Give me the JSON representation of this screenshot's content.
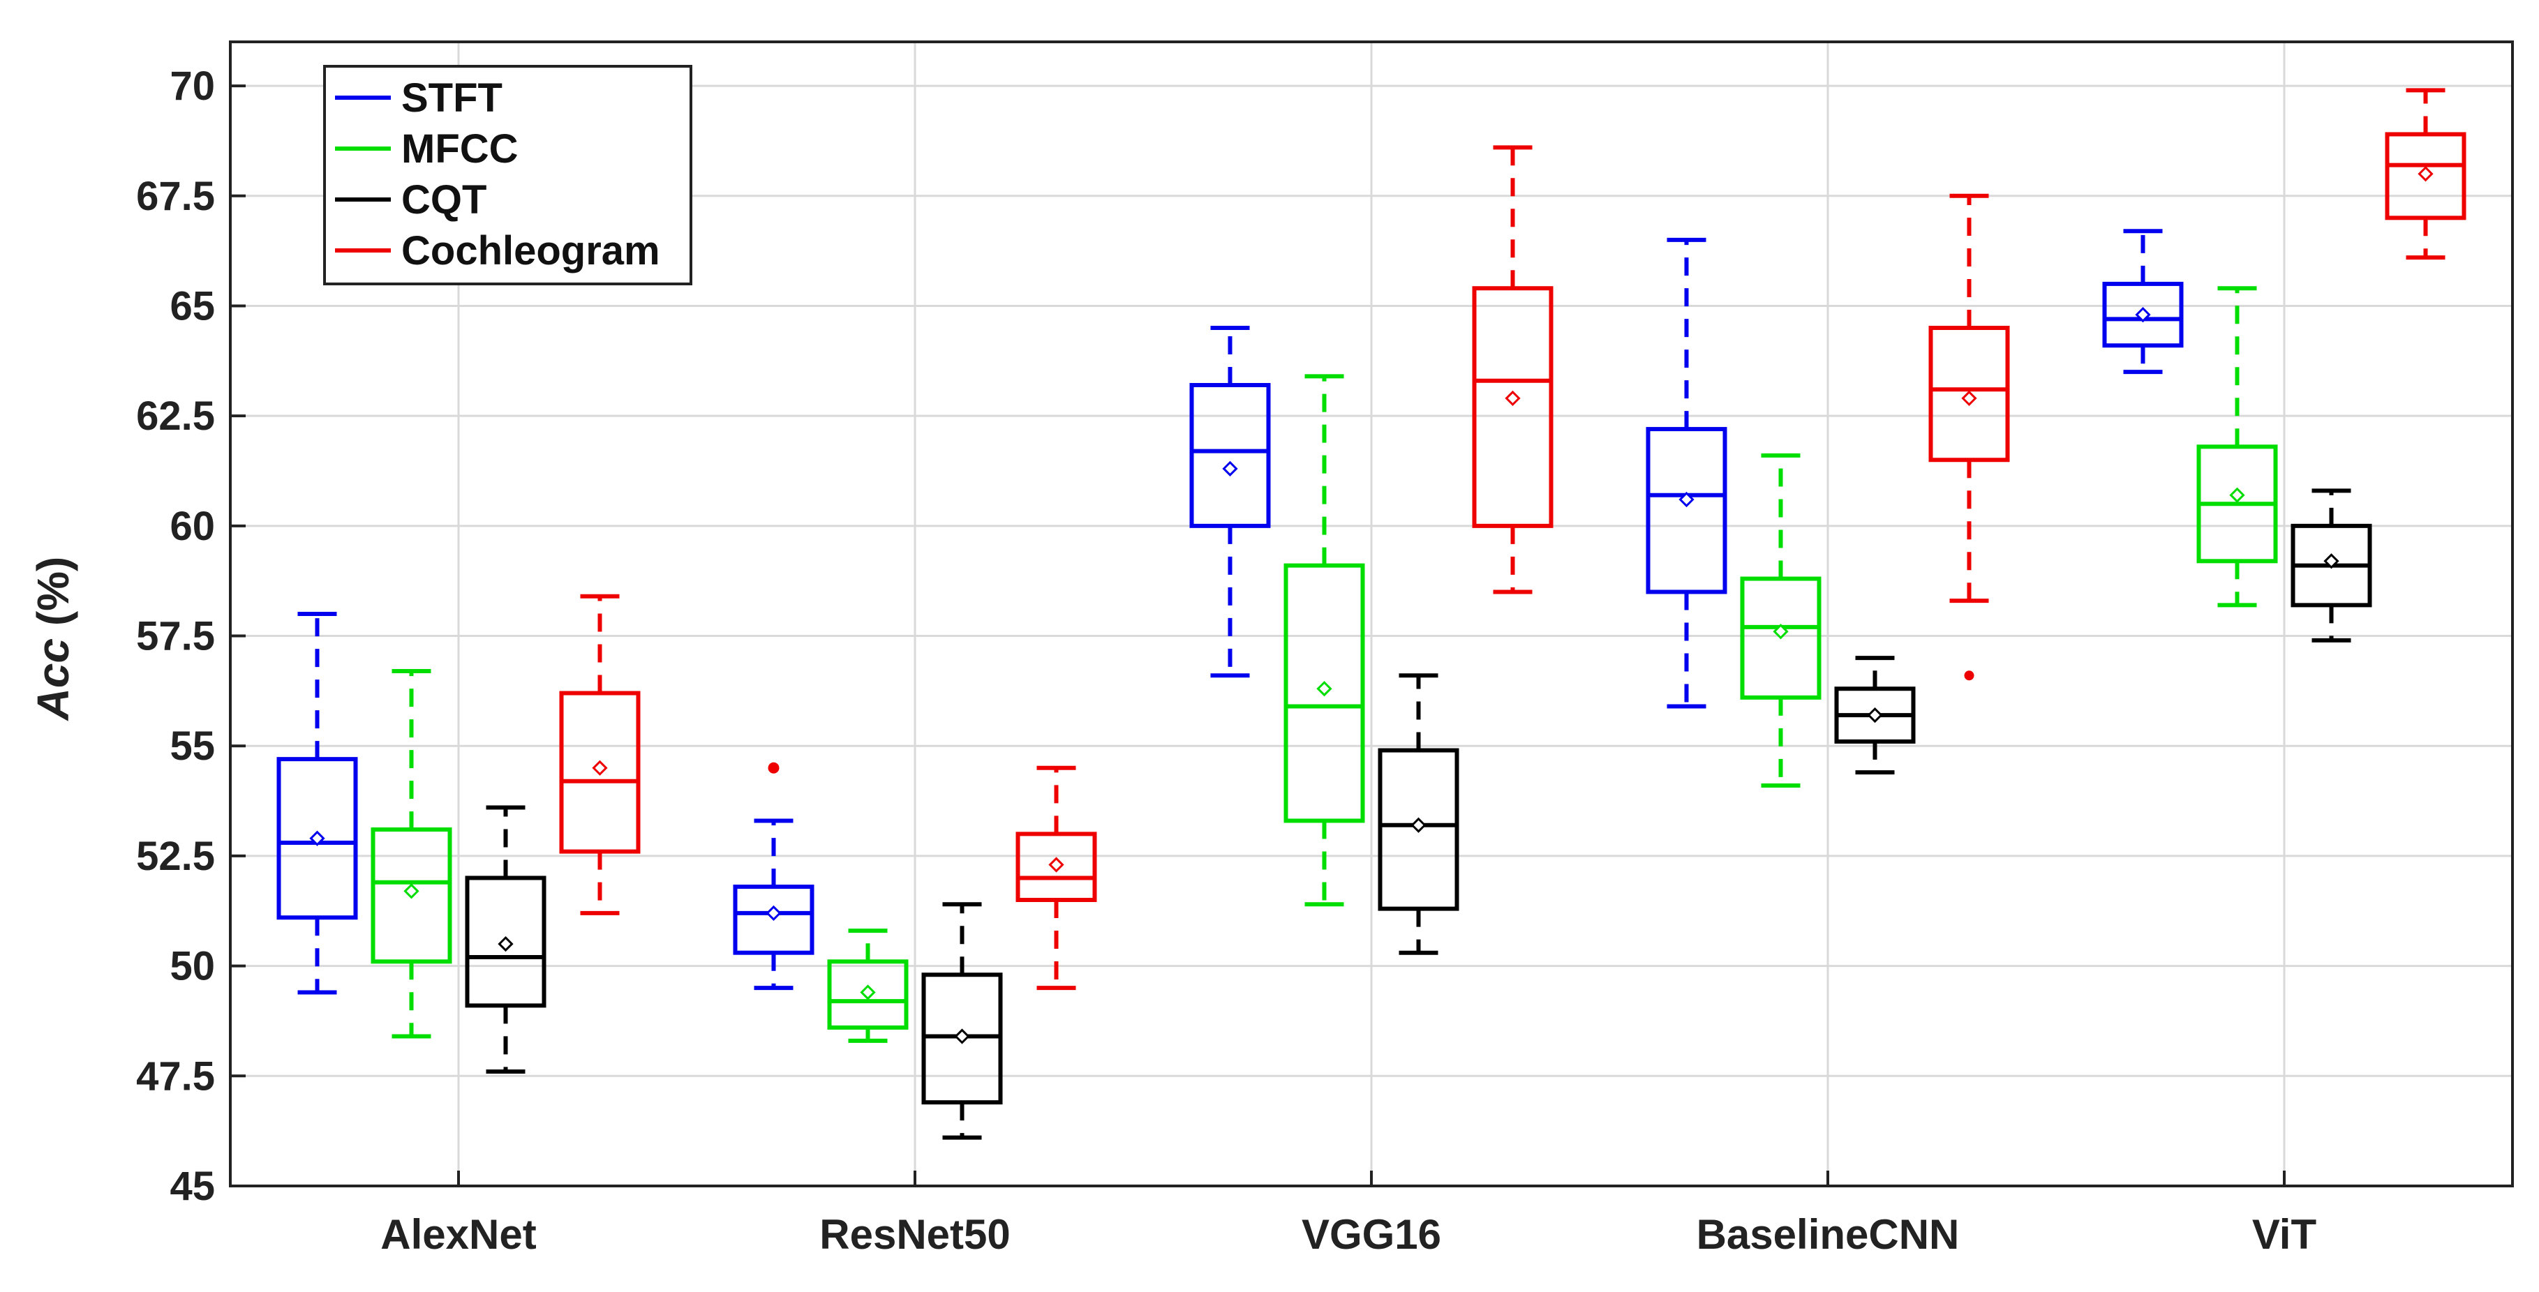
{
  "chart_data": {
    "type": "box",
    "title": "",
    "xlabel": "",
    "ylabel_main": "Acc",
    "ylabel_suffix": " (%)",
    "ylim": [
      45,
      71
    ],
    "yticks": [
      45,
      47.5,
      50,
      52.5,
      55,
      57.5,
      60,
      62.5,
      65,
      67.5,
      70
    ],
    "ytick_labels": [
      "45",
      "47.5",
      "50",
      "52.5",
      "55",
      "57.5",
      "60",
      "62.5",
      "65",
      "67.5",
      "70"
    ],
    "grid": true,
    "legend_position": "top-left",
    "categories": [
      "AlexNet",
      "ResNet50",
      "VGG16",
      "BaselineCNN",
      "ViT"
    ],
    "series": [
      {
        "name": "STFT",
        "color": "#0000ee",
        "boxes": [
          {
            "min": 49.4,
            "q1": 51.1,
            "median": 52.8,
            "q3": 54.7,
            "max": 58.0,
            "mean": 52.9,
            "outliers": []
          },
          {
            "min": 49.5,
            "q1": 50.3,
            "median": 51.2,
            "q3": 51.8,
            "max": 53.3,
            "mean": 51.2,
            "outliers": []
          },
          {
            "min": 56.6,
            "q1": 60.0,
            "median": 61.7,
            "q3": 63.2,
            "max": 64.5,
            "mean": 61.3,
            "outliers": []
          },
          {
            "min": 55.9,
            "q1": 58.5,
            "median": 60.7,
            "q3": 62.2,
            "max": 66.5,
            "mean": 60.6,
            "outliers": []
          },
          {
            "min": 63.5,
            "q1": 64.1,
            "median": 64.7,
            "q3": 65.5,
            "max": 66.7,
            "mean": 64.8,
            "outliers": []
          }
        ]
      },
      {
        "name": "MFCC",
        "color": "#00dd00",
        "boxes": [
          {
            "min": 48.4,
            "q1": 50.1,
            "median": 51.9,
            "q3": 53.1,
            "max": 56.7,
            "mean": 51.7,
            "outliers": []
          },
          {
            "min": 48.3,
            "q1": 48.6,
            "median": 49.2,
            "q3": 50.1,
            "max": 50.8,
            "mean": 49.4,
            "outliers": []
          },
          {
            "min": 51.4,
            "q1": 53.3,
            "median": 55.9,
            "q3": 59.1,
            "max": 63.4,
            "mean": 56.3,
            "outliers": []
          },
          {
            "min": 54.1,
            "q1": 56.1,
            "median": 57.7,
            "q3": 58.8,
            "max": 61.6,
            "mean": 57.6,
            "outliers": []
          },
          {
            "min": 58.2,
            "q1": 59.2,
            "median": 60.5,
            "q3": 61.8,
            "max": 65.4,
            "mean": 60.7,
            "outliers": []
          }
        ]
      },
      {
        "name": "CQT",
        "color": "#000000",
        "boxes": [
          {
            "min": 47.6,
            "q1": 49.1,
            "median": 50.2,
            "q3": 52.0,
            "max": 53.6,
            "mean": 50.5,
            "outliers": []
          },
          {
            "min": 46.1,
            "q1": 46.9,
            "median": 48.4,
            "q3": 49.8,
            "max": 51.4,
            "mean": 48.4,
            "outliers": []
          },
          {
            "min": 50.3,
            "q1": 51.3,
            "median": 53.2,
            "q3": 54.9,
            "max": 56.6,
            "mean": 53.2,
            "outliers": []
          },
          {
            "min": 54.4,
            "q1": 55.1,
            "median": 55.7,
            "q3": 56.3,
            "max": 57.0,
            "mean": 55.7,
            "outliers": []
          },
          {
            "min": 57.4,
            "q1": 58.2,
            "median": 59.1,
            "q3": 60.0,
            "max": 60.8,
            "mean": 59.2,
            "outliers": []
          }
        ]
      },
      {
        "name": "Cochleogram",
        "color": "#ee0000",
        "boxes": [
          {
            "min": 51.2,
            "q1": 52.6,
            "median": 54.2,
            "q3": 56.2,
            "max": 58.4,
            "mean": 54.5,
            "outliers": []
          },
          {
            "min": 49.5,
            "q1": 51.5,
            "median": 52.0,
            "q3": 53.0,
            "max": 54.5,
            "mean": 52.3,
            "outliers": []
          },
          {
            "min": 58.5,
            "q1": 60.0,
            "median": 63.3,
            "q3": 65.4,
            "max": 68.6,
            "mean": 62.9,
            "outliers": []
          },
          {
            "min": 58.3,
            "q1": 61.5,
            "median": 63.1,
            "q3": 64.5,
            "max": 67.5,
            "mean": 62.9,
            "outliers": [
              56.6
            ]
          },
          {
            "min": 66.1,
            "q1": 67.0,
            "median": 68.2,
            "q3": 68.9,
            "max": 69.9,
            "mean": 68.0,
            "outliers": []
          }
        ]
      }
    ],
    "extra_outliers": [
      {
        "series": 0,
        "category": 1,
        "values": [
          54.5
        ]
      }
    ]
  }
}
